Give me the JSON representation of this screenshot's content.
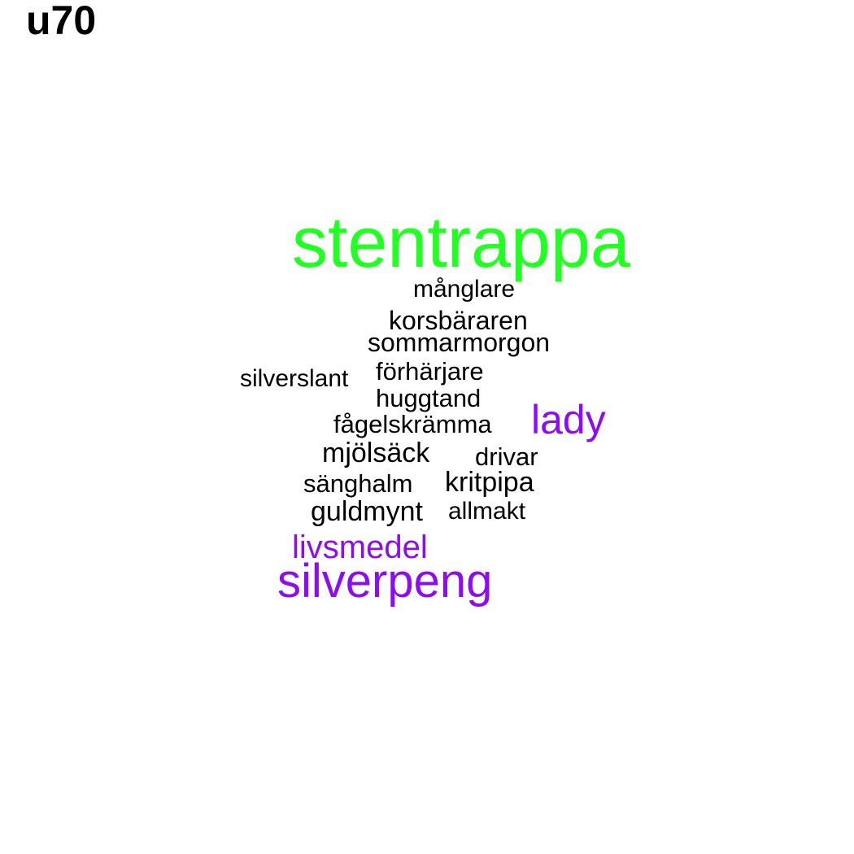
{
  "title": "u70",
  "colors": {
    "green": "#22ff22",
    "purple": "#8e0cf2",
    "black": "#000000"
  },
  "words": [
    {
      "id": "stentrappa",
      "text": "stentrappa",
      "color": "green"
    },
    {
      "id": "manglare",
      "text": "månglare",
      "color": "black"
    },
    {
      "id": "korsbararen",
      "text": "korsbäraren",
      "color": "black"
    },
    {
      "id": "sommarmorgon",
      "text": "sommarmorgon",
      "color": "black"
    },
    {
      "id": "silverslant",
      "text": "silverslant",
      "color": "black"
    },
    {
      "id": "forharjare",
      "text": "förhärjare",
      "color": "black"
    },
    {
      "id": "huggtand",
      "text": "huggtand",
      "color": "black"
    },
    {
      "id": "lady",
      "text": "lady",
      "color": "purple"
    },
    {
      "id": "fagelskramma",
      "text": "fågelskrämma",
      "color": "black"
    },
    {
      "id": "mjolsack",
      "text": "mjölsäck",
      "color": "black"
    },
    {
      "id": "drivar",
      "text": "drivar",
      "color": "black"
    },
    {
      "id": "sanghalm",
      "text": "sänghalm",
      "color": "black"
    },
    {
      "id": "kritpipa",
      "text": "kritpipa",
      "color": "black"
    },
    {
      "id": "guldmynt",
      "text": "guldmynt",
      "color": "black"
    },
    {
      "id": "allmakt",
      "text": "allmakt",
      "color": "black"
    },
    {
      "id": "livsmedel",
      "text": "livsmedel",
      "color": "purple"
    },
    {
      "id": "silverpeng",
      "text": "silverpeng",
      "color": "purple"
    }
  ]
}
